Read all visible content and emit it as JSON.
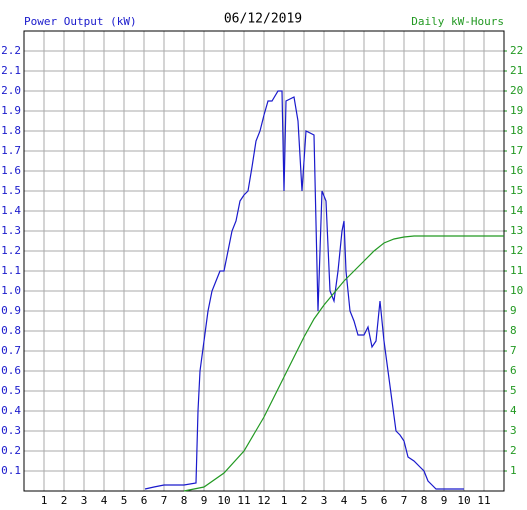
{
  "chart_data": {
    "type": "line",
    "title": "06/12/2019",
    "ylabel": "Power Output (kW)",
    "y2label": "Daily kW-Hours",
    "grid": true,
    "xlim": [
      0,
      24
    ],
    "xticks": [
      1,
      2,
      3,
      4,
      5,
      6,
      7,
      8,
      9,
      10,
      11,
      12,
      {
        "value": 13,
        "label": "1"
      },
      {
        "value": 14,
        "label": "2"
      },
      {
        "value": 15,
        "label": "3"
      },
      {
        "value": 16,
        "label": "4"
      },
      {
        "value": 17,
        "label": "5"
      },
      {
        "value": 18,
        "label": "6"
      },
      {
        "value": 19,
        "label": "7"
      },
      {
        "value": 20,
        "label": "8"
      },
      {
        "value": 21,
        "label": "9"
      },
      {
        "value": 22,
        "label": "10"
      },
      {
        "value": 23,
        "label": "11"
      }
    ],
    "ylim": [
      0,
      2.3
    ],
    "yticks": [
      0.1,
      0.2,
      0.3,
      0.4,
      0.5,
      0.6,
      0.7,
      0.8,
      0.9,
      {
        "value": 1,
        "label": "1.0"
      },
      1.1,
      1.2,
      1.3,
      1.4,
      1.5,
      1.6,
      1.7,
      1.8,
      1.9,
      {
        "value": 2,
        "label": "2.0"
      },
      2.1,
      2.2
    ],
    "y2lim": [
      0,
      23
    ],
    "y2ticks": [
      1,
      2,
      3,
      4,
      5,
      6,
      7,
      8,
      9,
      10,
      11,
      12,
      13,
      14,
      15,
      16,
      17,
      18,
      19,
      20,
      21,
      22
    ],
    "series": [
      {
        "name": "Power Output (kW)",
        "color": "#1a1acc",
        "x": [
          6.05,
          6.5,
          7.0,
          7.5,
          8.0,
          8.6,
          8.7,
          8.8,
          9.0,
          9.2,
          9.4,
          9.6,
          9.8,
          10.0,
          10.2,
          10.4,
          10.6,
          10.8,
          11.0,
          11.2,
          11.4,
          11.6,
          11.8,
          12.0,
          12.2,
          12.4,
          12.7,
          12.9,
          13.0,
          13.1,
          13.5,
          13.7,
          13.9,
          14.1,
          14.5,
          14.7,
          14.9,
          15.1,
          15.3,
          15.5,
          15.7,
          15.9,
          16.0,
          16.1,
          16.3,
          16.5,
          16.7,
          17.0,
          17.2,
          17.4,
          17.6,
          17.8,
          18.0,
          18.2,
          18.4,
          18.6,
          18.8,
          19.0,
          19.2,
          19.5,
          19.8,
          20.0,
          20.2,
          20.4,
          20.6,
          22.0
        ],
        "values": [
          0.01,
          0.02,
          0.03,
          0.03,
          0.03,
          0.04,
          0.4,
          0.6,
          0.75,
          0.9,
          1.0,
          1.05,
          1.1,
          1.1,
          1.2,
          1.3,
          1.35,
          1.45,
          1.48,
          1.5,
          1.62,
          1.75,
          1.8,
          1.88,
          1.95,
          1.95,
          2.0,
          2.0,
          1.5,
          1.95,
          1.97,
          1.85,
          1.5,
          1.8,
          1.78,
          0.9,
          1.5,
          1.45,
          1.0,
          0.95,
          1.1,
          1.3,
          1.35,
          1.1,
          0.9,
          0.85,
          0.78,
          0.78,
          0.82,
          0.72,
          0.75,
          0.95,
          0.75,
          0.6,
          0.45,
          0.3,
          0.28,
          0.25,
          0.17,
          0.15,
          0.12,
          0.1,
          0.05,
          0.03,
          0.01,
          0.01
        ]
      },
      {
        "name": "Daily kW-Hours",
        "color": "#229922",
        "axis": "y2",
        "x": [
          8.0,
          9.0,
          10.0,
          11.0,
          12.0,
          13.0,
          13.5,
          14.0,
          14.5,
          15.0,
          15.5,
          16.0,
          16.5,
          17.0,
          17.5,
          18.0,
          18.5,
          19.0,
          19.5,
          20.0,
          24.0
        ],
        "values": [
          0,
          0.2,
          0.9,
          2.0,
          3.7,
          5.7,
          6.7,
          7.7,
          8.6,
          9.3,
          9.9,
          10.5,
          11.0,
          11.5,
          12.0,
          12.4,
          12.6,
          12.7,
          12.75,
          12.75,
          12.75
        ]
      }
    ]
  }
}
